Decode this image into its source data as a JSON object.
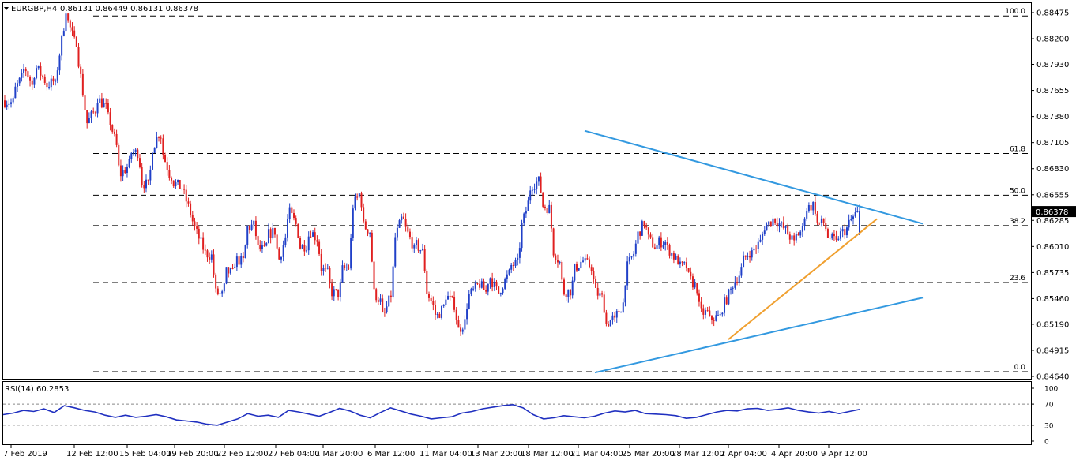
{
  "chart_data": [
    {
      "type": "candlestick",
      "title": "EURGBP,H4",
      "ohlc_readout": [
        "0.86131",
        "0.86449",
        "0.86131",
        "0.86378"
      ],
      "last_price": 0.86378,
      "ylim": [
        0.8464,
        0.88475
      ],
      "yticks": [
        0.8464,
        0.84915,
        0.8519,
        0.8546,
        0.85735,
        0.8601,
        0.86285,
        0.86555,
        0.8683,
        0.87105,
        0.8738,
        0.87655,
        0.8793,
        0.882,
        0.88475
      ],
      "xticks": [
        "7 Feb 2019",
        "12 Feb 12:00",
        "15 Feb 04:00",
        "19 Feb 20:00",
        "22 Feb 12:00",
        "27 Feb 04:00",
        "1 Mar 20:00",
        "6 Mar 12:00",
        "11 Mar 04:00",
        "13 Mar 20:00",
        "18 Mar 12:00",
        "21 Mar 04:00",
        "25 Mar 20:00",
        "28 Mar 12:00",
        "2 Apr 04:00",
        "4 Apr 20:00",
        "9 Apr 12:00"
      ],
      "bull_color": "#2040c8",
      "bear_color": "#e02020",
      "fibonacci": {
        "color": "#000000",
        "levels": [
          {
            "label": "100.0",
            "price": 0.8844
          },
          {
            "label": "61.8",
            "price": 0.8699
          },
          {
            "label": "50.0",
            "price": 0.8655
          },
          {
            "label": "38.2",
            "price": 0.8623
          },
          {
            "label": "23.6",
            "price": 0.8563
          },
          {
            "label": "0.0",
            "price": 0.8469
          }
        ]
      },
      "trendlines": [
        {
          "name": "upper",
          "color": "#3399e0",
          "from": {
            "date": "21 Mar 04:00",
            "price": 0.8723
          },
          "to": {
            "date": "10 Apr 20:00",
            "price": 0.8625
          }
        },
        {
          "name": "lower",
          "color": "#3399e0",
          "from": {
            "date": "22 Mar 12:00",
            "price": 0.8468
          },
          "to": {
            "date": "10 Apr 20:00",
            "price": 0.8547
          }
        },
        {
          "name": "support",
          "color": "#f0a030",
          "from": {
            "date": "2 Apr 04:00",
            "price": 0.8503
          },
          "to": {
            "date": "10 Apr 08:00",
            "price": 0.863
          }
        }
      ],
      "price_path": [
        [
          0.8755,
          0.8752
        ],
        [
          0.8763,
          0.8783
        ],
        [
          0.8793,
          0.8765
        ],
        [
          0.8792,
          0.8777
        ],
        [
          0.877,
          0.8776
        ],
        [
          0.8775,
          0.8848
        ],
        [
          0.8845,
          0.881
        ],
        [
          0.8813,
          0.873
        ],
        [
          0.8732,
          0.8748
        ],
        [
          0.8757,
          0.8745
        ],
        [
          0.874,
          0.8698
        ],
        [
          0.8675,
          0.8687
        ],
        [
          0.87,
          0.87
        ],
        [
          0.867,
          0.8664
        ],
        [
          0.87,
          0.8725
        ],
        [
          0.8705,
          0.8671
        ],
        [
          0.867,
          0.8662
        ],
        [
          0.8662,
          0.863
        ],
        [
          0.8625,
          0.86
        ],
        [
          0.8595,
          0.859
        ],
        [
          0.8553,
          0.8549
        ],
        [
          0.8575,
          0.8572
        ],
        [
          0.8587,
          0.8585
        ],
        [
          0.862,
          0.8624
        ],
        [
          0.86,
          0.8596
        ],
        [
          0.8613,
          0.8618
        ],
        [
          0.858,
          0.8618
        ],
        [
          0.8641,
          0.862
        ],
        [
          0.86,
          0.8603
        ],
        [
          0.862,
          0.8606
        ],
        [
          0.858,
          0.8571
        ],
        [
          0.8553,
          0.8551
        ],
        [
          0.8576,
          0.858
        ],
        [
          0.864,
          0.866
        ],
        [
          0.8625,
          0.8615
        ],
        [
          0.8555,
          0.854
        ],
        [
          0.8524,
          0.8556
        ],
        [
          0.8604,
          0.8636
        ],
        [
          0.8624,
          0.86
        ],
        [
          0.8605,
          0.8593
        ],
        [
          0.8558,
          0.8533
        ],
        [
          0.8525,
          0.854
        ],
        [
          0.855,
          0.8537
        ],
        [
          0.851,
          0.8524
        ],
        [
          0.8547,
          0.8559
        ],
        [
          0.8564,
          0.855
        ],
        [
          0.8573,
          0.855
        ],
        [
          0.8553,
          0.8573
        ],
        [
          0.858,
          0.8584
        ],
        [
          0.8615,
          0.8655
        ],
        [
          0.8665,
          0.8671
        ],
        [
          0.8645,
          0.864
        ],
        [
          0.86,
          0.858
        ],
        [
          0.8552,
          0.8555
        ],
        [
          0.8575,
          0.8587
        ],
        [
          0.8585,
          0.8578
        ],
        [
          0.8555,
          0.8545
        ],
        [
          0.8517,
          0.8527
        ],
        [
          0.8525,
          0.8545
        ],
        [
          0.8575,
          0.8598
        ],
        [
          0.861,
          0.863
        ],
        [
          0.8612,
          0.8598
        ],
        [
          0.8606,
          0.8605
        ],
        [
          0.86,
          0.8584
        ],
        [
          0.858,
          0.858
        ],
        [
          0.8568,
          0.8554
        ],
        [
          0.8531,
          0.8531
        ],
        [
          0.8525,
          0.8527
        ],
        [
          0.8532,
          0.8555
        ],
        [
          0.8558,
          0.8575
        ],
        [
          0.8584,
          0.8598
        ],
        [
          0.8596,
          0.8608
        ],
        [
          0.862,
          0.8629
        ],
        [
          0.8632,
          0.862
        ],
        [
          0.8621,
          0.8605
        ],
        [
          0.861,
          0.8621
        ],
        [
          0.864,
          0.8646
        ],
        [
          0.8625,
          0.8626
        ],
        [
          0.8613,
          0.8606
        ],
        [
          0.861,
          0.862
        ],
        [
          0.8622,
          0.8638
        ]
      ],
      "rsi": {
        "label": "RSI(14)",
        "value": "60.2853",
        "color": "#2030c0",
        "ylim": [
          0,
          100
        ],
        "yticks": [
          100,
          70,
          30,
          0
        ],
        "levels": [
          70,
          30
        ],
        "values": [
          50,
          53,
          58,
          56,
          61,
          54,
          67,
          63,
          58,
          55,
          49,
          45,
          49,
          45,
          47,
          50,
          46,
          40,
          38,
          36,
          32,
          30,
          36,
          42,
          52,
          47,
          49,
          45,
          58,
          55,
          51,
          47,
          54,
          62,
          57,
          49,
          44,
          54,
          63,
          57,
          51,
          47,
          42,
          44,
          46,
          53,
          56,
          61,
          64,
          67,
          69,
          63,
          50,
          42,
          44,
          48,
          46,
          44,
          47,
          53,
          57,
          55,
          58,
          52,
          51,
          50,
          48,
          43,
          45,
          50,
          55,
          58,
          57,
          61,
          62,
          58,
          60,
          63,
          58,
          55,
          53,
          56,
          52,
          56,
          60
        ]
      }
    }
  ]
}
